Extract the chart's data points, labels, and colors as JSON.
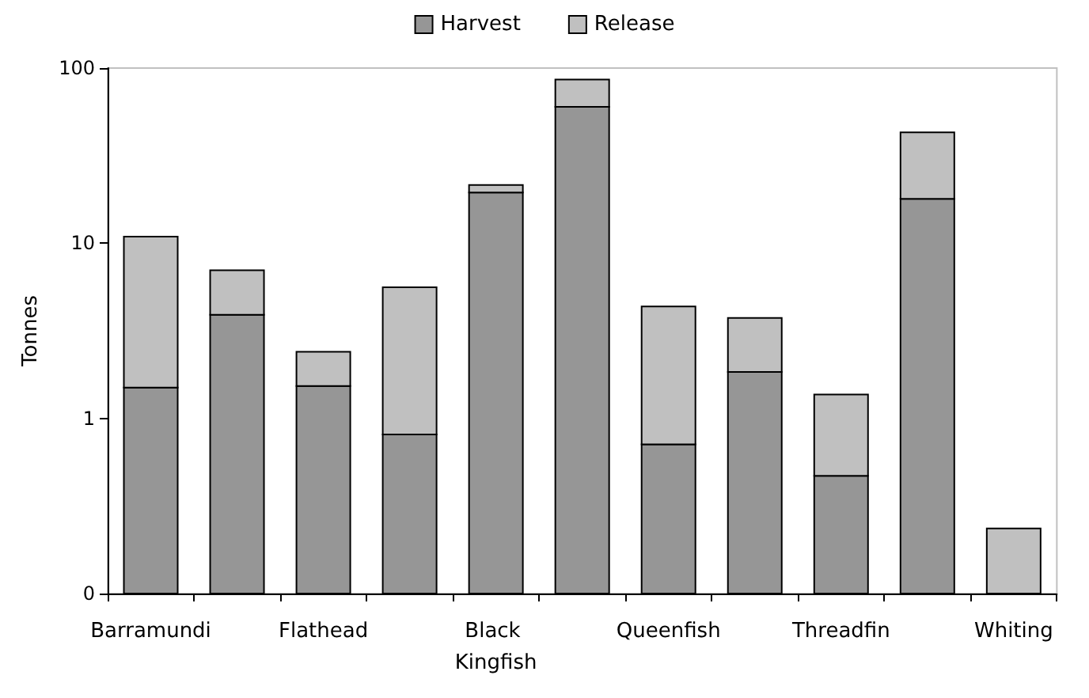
{
  "chart_data": {
    "type": "bar",
    "stacked": true,
    "log": "y",
    "ylabel": "Tonnes",
    "legend": "top",
    "grid": false,
    "categories": [
      "Barramundi",
      null,
      "Flathead",
      null,
      "Black Kingfish",
      null,
      "Queenfish",
      null,
      "Threadfin",
      null,
      "Whiting"
    ],
    "series": [
      {
        "name": "Harvest",
        "color": "#969696",
        "values": [
          1.5,
          3.9,
          1.53,
          0.81,
          19.5,
          60,
          0.71,
          1.84,
          0.47,
          17.9,
          null
        ]
      },
      {
        "name": "Release",
        "color": "#c0c0c0",
        "values": [
          9.4,
          3.1,
          0.87,
          4.8,
          2.0,
          26,
          3.65,
          1.9,
          0.9,
          25,
          0.235
        ]
      }
    ],
    "ylim": [
      0.1,
      100
    ],
    "yticks": [
      {
        "value": 0.1,
        "label": "0"
      },
      1,
      10,
      100
    ]
  }
}
